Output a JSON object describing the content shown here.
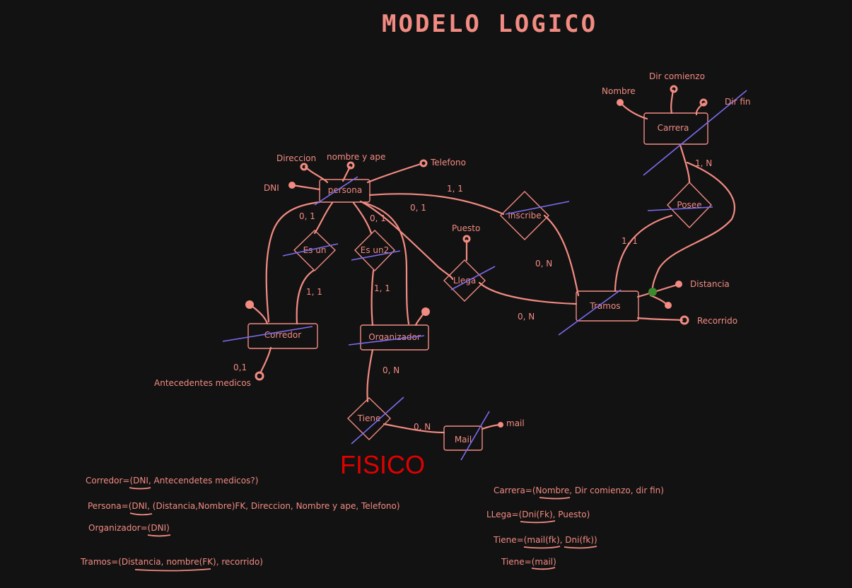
{
  "title": "MODELO LOGICO",
  "fisico_title": "FISICO",
  "colors": {
    "background": "#121212",
    "stroke": "#f28b82",
    "strike": "#7b6cf0",
    "fisico": "#e00000",
    "multivalued_dot": "#3c8a2e"
  },
  "entities": {
    "persona": "persona",
    "carrera": "Carrera",
    "corredor": "Corredor",
    "organizador": "Organizador",
    "tramos": "Tramos",
    "mail": "Mail"
  },
  "relations": {
    "es_un": "Es un",
    "es_un2": "Es un2",
    "inscribe": "Inscribe",
    "llega": "Llega",
    "posee": "Posee",
    "tiene": "Tiene"
  },
  "attributes": {
    "direccion": "Direccion",
    "nombre_y_ape": "nombre y ape",
    "telefono": "Telefono",
    "dni": "DNI",
    "nombre": "Nombre",
    "dir_comienzo": "Dir comienzo",
    "dir_fin": "Dir fin",
    "puesto": "Puesto",
    "distancia": "Distancia",
    "recorrido": "Recorrido",
    "antecedentes": "Antecedentes medicos",
    "mail": "mail"
  },
  "cardinalities": {
    "persona_inscribe": "1, 1",
    "persona_llega": "0, 1",
    "persona_esun": "0, 1",
    "persona_esun2": "0, 1",
    "esun_corredor": "1, 1",
    "esun2_organizador": "1, 1",
    "inscribe_tramos": "0, N",
    "llega_tramos": "0, N",
    "carrera_posee": "1, N",
    "posee_tramos": "1, 1",
    "organizador_tiene": "0, N",
    "tiene_mail": "0, N",
    "antecedentes": "0,1"
  },
  "physical": {
    "left": [
      "Corredor=(DNI, Antecendetes medicos?)",
      "Persona=(DNI, (Distancia,Nombre)FK, Direccion, Nombre y ape, Telefono)",
      "Organizador=(DNI)",
      "Tramos=(Distancia, nombre(FK), recorrido)"
    ],
    "right": [
      "Carrera=(Nombre, Dir comienzo, dir fin)",
      "LLega=(Dni(Fk), Puesto)",
      "Tiene=(mail(fk), Dni(fk))",
      "Tiene=(mail)"
    ]
  }
}
